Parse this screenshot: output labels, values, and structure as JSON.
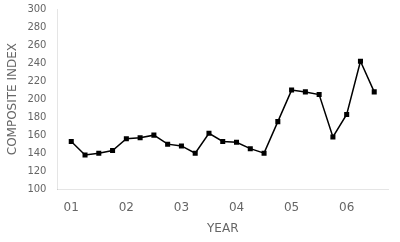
{
  "chart_data": {
    "type": "line",
    "x": [
      1.0,
      1.25,
      1.5,
      1.75,
      2.0,
      2.25,
      2.5,
      2.75,
      3.0,
      3.25,
      3.5,
      3.75,
      4.0,
      4.25,
      4.5,
      4.75,
      5.0,
      5.25,
      5.5,
      5.75,
      6.0,
      6.25,
      6.5
    ],
    "values": [
      153,
      138,
      140,
      143,
      156,
      157,
      160,
      150,
      148,
      140,
      162,
      153,
      152,
      145,
      140,
      175,
      210,
      208,
      205,
      158,
      183,
      242,
      208
    ],
    "xlim": [
      0.75,
      6.75
    ],
    "xticks": [
      {
        "value": 1,
        "label": "01"
      },
      {
        "value": 2,
        "label": "02"
      },
      {
        "value": 3,
        "label": "03"
      },
      {
        "value": 4,
        "label": "04"
      },
      {
        "value": 5,
        "label": "05"
      },
      {
        "value": 6,
        "label": "06"
      }
    ],
    "ylim": [
      100,
      300
    ],
    "yticks": [
      100,
      120,
      140,
      160,
      180,
      200,
      220,
      240,
      260,
      280,
      300
    ],
    "xlabel": "YEAR",
    "ylabel": "COMPOSITE INDEX",
    "color": "#000000",
    "marker": "square",
    "line_style": "solid",
    "grid": false
  }
}
